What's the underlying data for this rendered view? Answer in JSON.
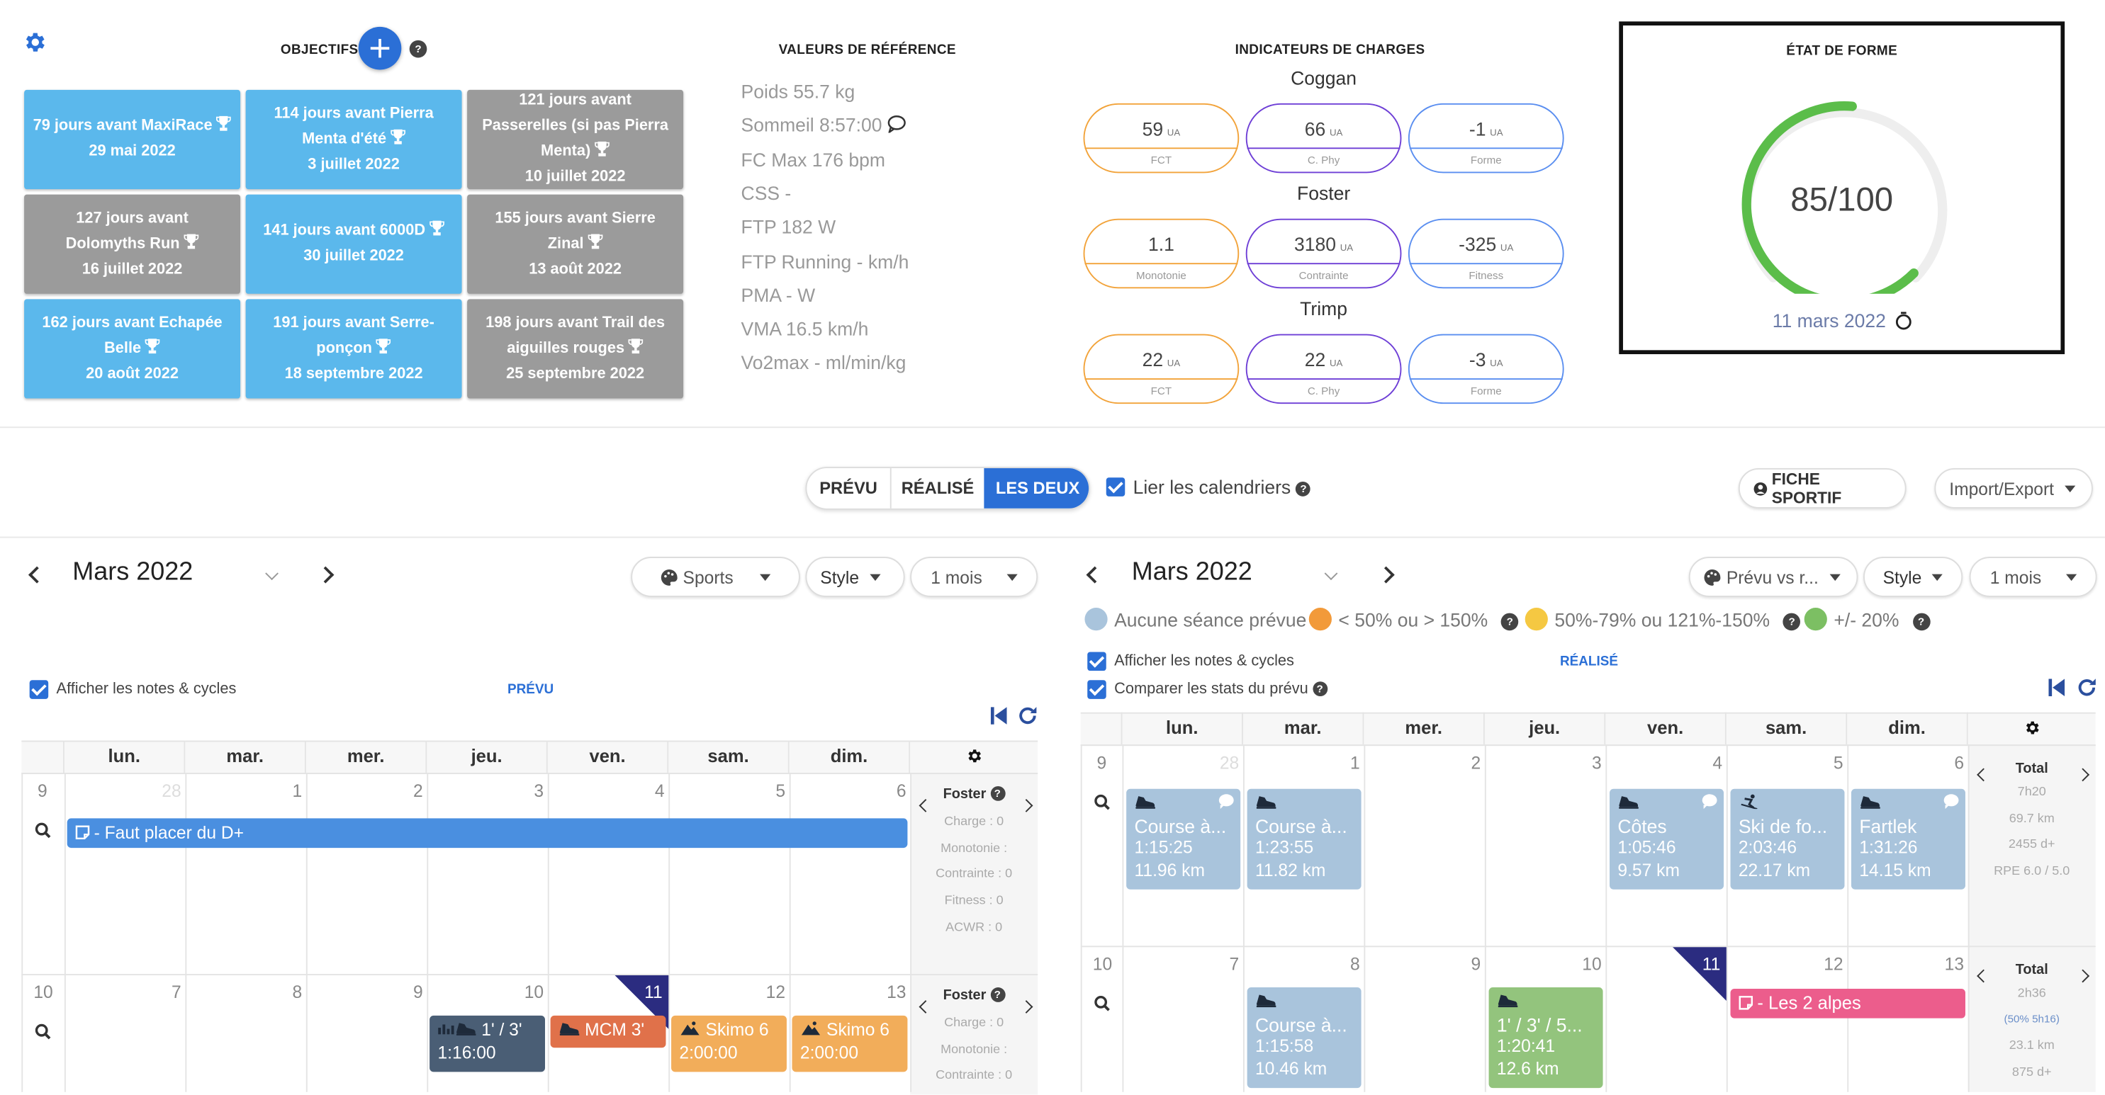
{
  "objectives": {
    "title": "OBJECTIFS",
    "items": [
      {
        "lines": [
          "79 jours avant MaxiRace",
          "",
          "29 mai 2022"
        ],
        "color": "blue"
      },
      {
        "lines": [
          "114 jours avant Pierra",
          "Menta d'été",
          "3 juillet 2022"
        ],
        "color": "blue"
      },
      {
        "lines": [
          "121 jours avant",
          "Passerelles (si pas Pierra",
          "Menta)",
          "10 juillet 2022"
        ],
        "color": "grey"
      },
      {
        "lines": [
          "127 jours avant",
          "Dolomyths Run",
          "16 juillet 2022"
        ],
        "color": "grey"
      },
      {
        "lines": [
          "141 jours avant 6000D",
          "30 juillet 2022"
        ],
        "color": "blue"
      },
      {
        "lines": [
          "155 jours avant Sierre",
          "Zinal",
          "13 août 2022"
        ],
        "color": "grey"
      },
      {
        "lines": [
          "162 jours avant Echapée",
          "Belle",
          "20 août 2022"
        ],
        "color": "blue"
      },
      {
        "lines": [
          "191 jours avant Serre-",
          "ponçon",
          "18 septembre 2022"
        ],
        "color": "blue"
      },
      {
        "lines": [
          "198 jours avant Trail des",
          "aiguilles rouges",
          "25 septembre 2022"
        ],
        "color": "grey"
      }
    ]
  },
  "reference": {
    "title": "VALEURS DE RÉFÉRENCE",
    "items": [
      "Poids 55.7 kg",
      "Sommeil 8:57:00",
      "FC Max 176 bpm",
      "CSS -",
      "FTP 182 W",
      "FTP Running - km/h",
      "PMA - W",
      "VMA 16.5 km/h",
      "Vo2max - ml/min/kg"
    ]
  },
  "charges": {
    "title": "INDICATEURS DE CHARGES",
    "groups": [
      {
        "name": "Coggan",
        "pills": [
          {
            "value": "59",
            "unit": "UA",
            "label": "FCT",
            "color": "o"
          },
          {
            "value": "66",
            "unit": "UA",
            "label": "C. Phy",
            "color": "p"
          },
          {
            "value": "-1",
            "unit": "UA",
            "label": "Forme",
            "color": "b"
          }
        ]
      },
      {
        "name": "Foster",
        "pills": [
          {
            "value": "1.1",
            "unit": "",
            "label": "Monotonie",
            "color": "o"
          },
          {
            "value": "3180",
            "unit": "UA",
            "label": "Contrainte",
            "color": "p"
          },
          {
            "value": "-325",
            "unit": "UA",
            "label": "Fitness",
            "color": "b"
          }
        ]
      },
      {
        "name": "Trimp",
        "pills": [
          {
            "value": "22",
            "unit": "UA",
            "label": "FCT",
            "color": "o"
          },
          {
            "value": "22",
            "unit": "UA",
            "label": "C. Phy",
            "color": "p"
          },
          {
            "value": "-3",
            "unit": "UA",
            "label": "Forme",
            "color": "b"
          }
        ]
      }
    ]
  },
  "form": {
    "title": "ÉTAT DE FORME",
    "score": "85/100",
    "score_fraction": 0.85,
    "date": "11 mars 2022"
  },
  "toolbar": {
    "toggle": [
      "PRÉVU",
      "RÉALISÉ",
      "LES DEUX"
    ],
    "active": 2,
    "link_label": "Lier les calendriers",
    "sportif_label": "FICHE SPORTIF",
    "import_label": "Import/Export"
  },
  "left_cal": {
    "month": "Mars 2022",
    "filters": [
      "Sports",
      "Style",
      "1 mois"
    ],
    "notes_label": "Afficher les notes & cycles",
    "section_label": "PRÉVU",
    "days": [
      "lun.",
      "mar.",
      "mer.",
      "jeu.",
      "ven.",
      "sam.",
      "dim."
    ],
    "weeks": [
      {
        "num": "9",
        "dates": [
          "",
          "28",
          "1",
          "2",
          "3",
          "4",
          "5",
          "6"
        ]
      },
      {
        "num": "10",
        "dates": [
          "",
          "7",
          "8",
          "9",
          "10",
          "11",
          "12",
          "13"
        ]
      }
    ],
    "note_event": "- Faut placer du D+",
    "events": [
      {
        "title": "1' / 3'",
        "sub": "1:16:00",
        "color": "#4a5e75"
      },
      {
        "title": "MCM 3'",
        "sub": "",
        "color": "#e0714a"
      },
      {
        "title": "Skimo 6",
        "sub": "2:00:00",
        "color": "#f2ad5a"
      },
      {
        "title": "Skimo 6",
        "sub": "2:00:00",
        "color": "#f2ad5a"
      }
    ],
    "side": {
      "title": "Foster",
      "lines": [
        "Charge : 0",
        "Monotonie :",
        "Contrainte : 0",
        "Fitness : 0",
        "ACWR : 0"
      ],
      "lines2": [
        "Charge : 0",
        "Monotonie :",
        "Contrainte : 0"
      ]
    }
  },
  "right_cal": {
    "month": "Mars 2022",
    "filters": [
      "Prévu vs r...",
      "Style",
      "1 mois"
    ],
    "legend": [
      {
        "label": "Aucune séance prévue",
        "color": "#a9c4dc"
      },
      {
        "label": "< 50% ou > 150%",
        "color": "#f29a3a"
      },
      {
        "label": "50%-79% ou 121%-150%",
        "color": "#f5c842"
      },
      {
        "label": "+/- 20%",
        "color": "#7cbf63"
      }
    ],
    "notes_label": "Afficher les notes & cycles",
    "compare_label": "Comparer les stats du prévu",
    "section_label": "RÉALISÉ",
    "days": [
      "lun.",
      "mar.",
      "mer.",
      "jeu.",
      "ven.",
      "sam.",
      "dim."
    ],
    "weeks": [
      {
        "num": "9",
        "dates": [
          "",
          "28",
          "1",
          "2",
          "3",
          "4",
          "5",
          "6"
        ]
      },
      {
        "num": "10",
        "dates": [
          "",
          "7",
          "8",
          "9",
          "10",
          "11",
          "12",
          "13"
        ]
      }
    ],
    "events": [
      {
        "title": "Course à...",
        "l2": "1:15:25",
        "l3": "11.96 km"
      },
      {
        "title": "Course à...",
        "l2": "1:23:55",
        "l3": "11.82 km"
      },
      {
        "title": "Côtes",
        "l2": "1:05:46",
        "l3": "9.57 km"
      },
      {
        "title": "Ski de fo...",
        "l2": "2:03:46",
        "l3": "22.17 km"
      },
      {
        "title": "Fartlek",
        "l2": "1:31:26",
        "l3": "14.15 km"
      },
      {
        "title": "Course à...",
        "l2": "1:15:58",
        "l3": "10.46 km"
      },
      {
        "title": "1' / 3' / 5...",
        "l2": "1:20:41",
        "l3": "12.6 km"
      }
    ],
    "note_event": "- Les 2 alpes",
    "totals": [
      {
        "title": "Total",
        "lines": [
          "7h20",
          "69.7 km",
          "2455 d+",
          "RPE 6.0 / 5.0"
        ]
      },
      {
        "title": "Total",
        "lines": [
          "2h36",
          "(50% 5h16)",
          "23.1 km",
          "875 d+"
        ]
      }
    ]
  }
}
